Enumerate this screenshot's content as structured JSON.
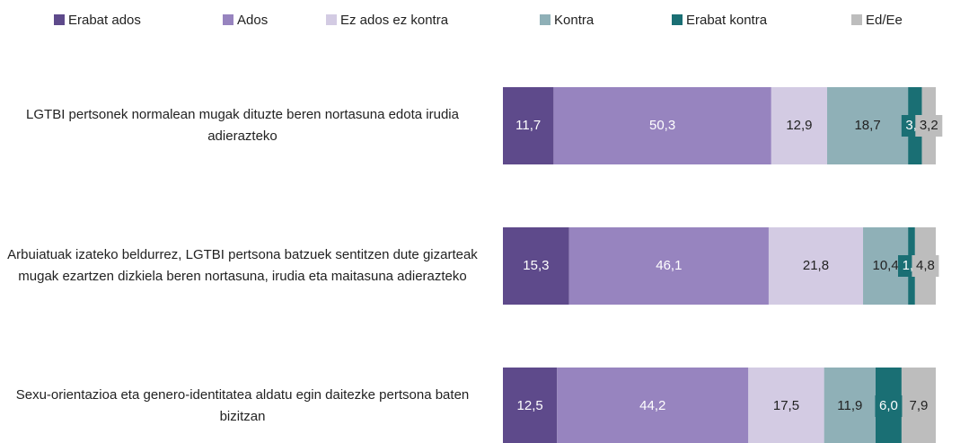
{
  "chart_data": {
    "type": "stacked-bar-horizontal",
    "categories": [
      "LGTBI pertsonek normalean mugak dituzte beren nortasuna edota irudia adierazteko",
      "Arbuiatuak izateko beldurrez, LGTBI pertsona batzuek sentitzen dute gizarteak mugak ezartzen dizkiela beren nortasuna, irudia eta maitasuna adierazteko",
      "Sexu-orientazioa eta genero-identitatea aldatu egin daitezke pertsona baten bizitzan"
    ],
    "xlim": [
      0,
      100
    ],
    "legend": "top",
    "series": [
      {
        "name": "Erabat ados",
        "color": "#5e4a8b",
        "values": [
          11.7,
          15.3,
          12.5
        ],
        "value_labels": [
          "11,7",
          "15,3",
          "12,5"
        ]
      },
      {
        "name": "Ados",
        "color": "#9784bf",
        "values": [
          50.3,
          46.1,
          44.2
        ],
        "value_labels": [
          "50,3",
          "46,1",
          "44,2"
        ]
      },
      {
        "name": "Ez ados ez kontra",
        "color": "#d3cbe3",
        "values": [
          12.9,
          21.8,
          17.5
        ],
        "value_labels": [
          "12,9",
          "21,8",
          "17,5"
        ]
      },
      {
        "name": "Kontra",
        "color": "#8fb0b7",
        "values": [
          18.7,
          10.4,
          11.9
        ],
        "value_labels": [
          "18,7",
          "10,4",
          "11,9"
        ]
      },
      {
        "name": "Erabat kontra",
        "color": "#1a6f74",
        "values": [
          3.2,
          1.6,
          6.0
        ],
        "value_labels": [
          "3,2",
          "1,6",
          "6,0"
        ]
      },
      {
        "name": "Ed/Ee",
        "color": "#bdbdbd",
        "values": [
          3.2,
          4.8,
          7.9
        ],
        "value_labels": [
          "3,2",
          "4,8",
          "7,9"
        ]
      }
    ]
  }
}
